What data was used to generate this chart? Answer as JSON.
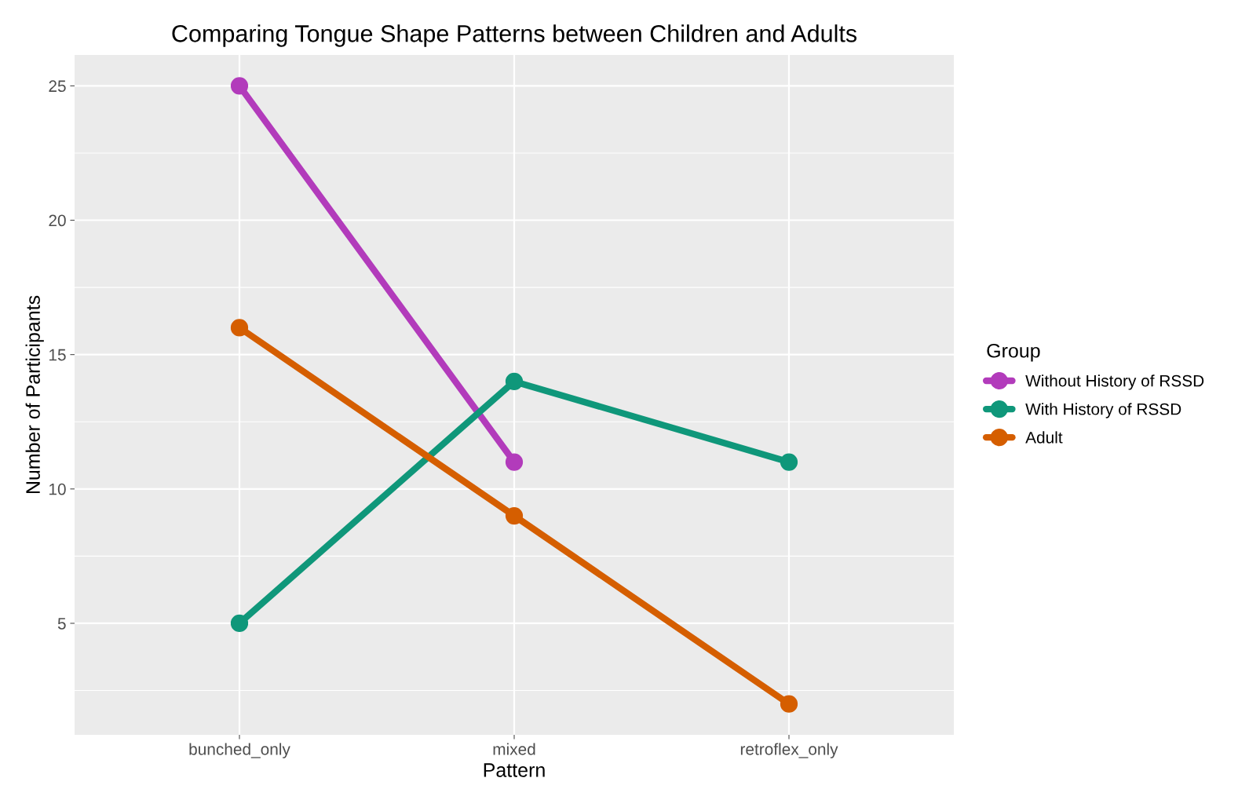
{
  "chart_data": {
    "type": "line",
    "title": "Comparing Tongue Shape Patterns between Children and Adults",
    "xlabel": "Pattern",
    "ylabel": "Number of Participants",
    "legend_title": "Group",
    "categories": [
      "bunched_only",
      "mixed",
      "retroflex_only"
    ],
    "series": [
      {
        "name": "Without History of RSSD",
        "color": "#b23bbb",
        "values": [
          25,
          11,
          null
        ]
      },
      {
        "name": "With History of RSSD",
        "color": "#0f977a",
        "values": [
          5,
          14,
          11
        ]
      },
      {
        "name": "Adult",
        "color": "#d55e00",
        "values": [
          16,
          9,
          2
        ]
      }
    ],
    "ylim": [
      0.85,
      26.15
    ],
    "yticks": [
      5,
      10,
      15,
      20,
      25
    ],
    "grid": true,
    "legend": "right",
    "marker": "circle",
    "line_style": "solid"
  }
}
